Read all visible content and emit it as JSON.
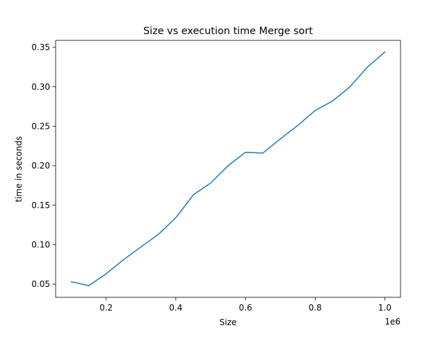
{
  "chart_data": {
    "type": "line",
    "title": "Size vs execution time Merge sort",
    "xlabel": "Size",
    "ylabel": "time in seconds",
    "x_offset_label": "1e6",
    "xlim": [
      0.055,
      1.045
    ],
    "ylim": [
      0.0332,
      0.3588
    ],
    "x_ticks": [
      0.2,
      0.4,
      0.6,
      0.8,
      1.0
    ],
    "x_tick_labels": [
      "0.2",
      "0.4",
      "0.6",
      "0.8",
      "1.0"
    ],
    "y_ticks": [
      0.05,
      0.1,
      0.15,
      0.2,
      0.25,
      0.3,
      0.35
    ],
    "y_tick_labels": [
      "0.05",
      "0.10",
      "0.15",
      "0.20",
      "0.25",
      "0.30",
      "0.35"
    ],
    "grid": false,
    "series": [
      {
        "color": "#1f77b4",
        "x": [
          0.1,
          0.15,
          0.2,
          0.25,
          0.3,
          0.35,
          0.4,
          0.45,
          0.5,
          0.55,
          0.6,
          0.65,
          0.7,
          0.75,
          0.8,
          0.85,
          0.9,
          0.95,
          1.0
        ],
        "y": [
          0.053,
          0.048,
          0.063,
          0.081,
          0.097,
          0.113,
          0.134,
          0.163,
          0.178,
          0.2,
          0.217,
          0.216,
          0.234,
          0.251,
          0.27,
          0.282,
          0.3,
          0.325,
          0.344
        ]
      }
    ]
  }
}
